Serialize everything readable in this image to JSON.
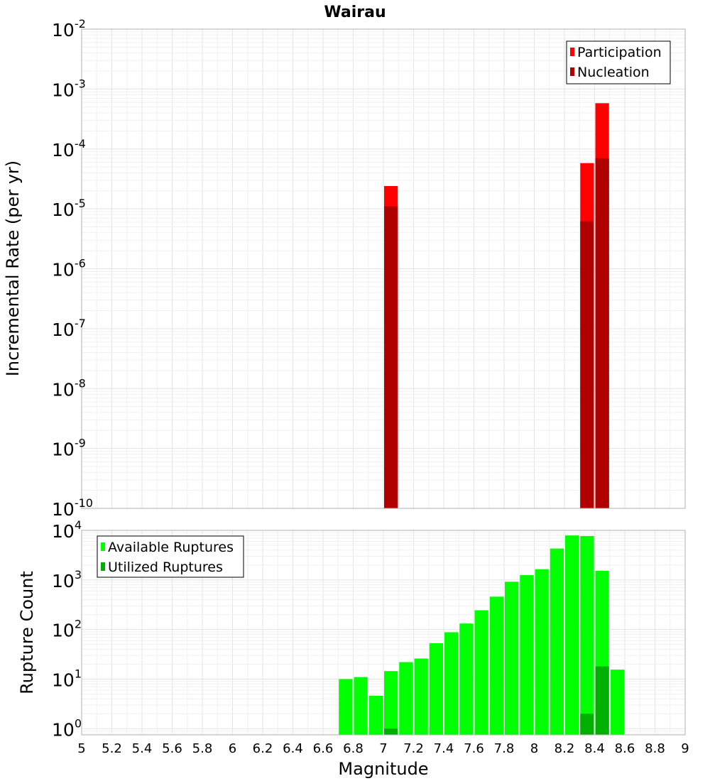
{
  "chart_data": [
    {
      "type": "bar",
      "panel": "top",
      "title": "Wairau",
      "xlabel": "",
      "ylabel": "Incremental Rate (per yr)",
      "yscale": "log",
      "ylim": [
        1e-10,
        0.01
      ],
      "xlim": [
        5,
        9
      ],
      "y_ticks": [
        {
          "base": "10",
          "exp": "-10"
        },
        {
          "base": "10",
          "exp": "-9"
        },
        {
          "base": "10",
          "exp": "-8"
        },
        {
          "base": "10",
          "exp": "-7"
        },
        {
          "base": "10",
          "exp": "-6"
        },
        {
          "base": "10",
          "exp": "-5"
        },
        {
          "base": "10",
          "exp": "-4"
        },
        {
          "base": "10",
          "exp": "-3"
        },
        {
          "base": "10",
          "exp": "-2"
        }
      ],
      "legend_position": "top-right",
      "series": [
        {
          "name": "Participation",
          "color": "#ff0000",
          "points": [
            {
              "x": 7.05,
              "y": 2.4e-05
            },
            {
              "x": 8.35,
              "y": 5.8e-05
            },
            {
              "x": 8.45,
              "y": 0.00058
            }
          ]
        },
        {
          "name": "Nucleation",
          "color": "#b00000",
          "points": [
            {
              "x": 7.05,
              "y": 1.1e-05
            },
            {
              "x": 8.35,
              "y": 6.2e-06
            },
            {
              "x": 8.45,
              "y": 7e-05
            }
          ]
        }
      ]
    },
    {
      "type": "bar",
      "panel": "bottom",
      "title": "",
      "xlabel": "Magnitude",
      "ylabel": "Rupture Count",
      "yscale": "log",
      "ylim": [
        0.75,
        10000
      ],
      "xlim": [
        5,
        9
      ],
      "x_ticks": [
        "5",
        "5.2",
        "5.4",
        "5.6",
        "5.8",
        "6",
        "6.2",
        "6.4",
        "6.6",
        "6.8",
        "7",
        "7.2",
        "7.4",
        "7.6",
        "7.8",
        "8",
        "8.2",
        "8.4",
        "8.6",
        "8.8",
        "9"
      ],
      "y_ticks": [
        {
          "base": "10",
          "exp": "0"
        },
        {
          "base": "10",
          "exp": "1"
        },
        {
          "base": "10",
          "exp": "2"
        },
        {
          "base": "10",
          "exp": "3"
        },
        {
          "base": "10",
          "exp": "4"
        }
      ],
      "legend_position": "top-left",
      "series": [
        {
          "name": "Available Ruptures",
          "color": "#00ff00",
          "points": [
            {
              "x": 6.75,
              "y": 10
            },
            {
              "x": 6.85,
              "y": 11
            },
            {
              "x": 6.95,
              "y": 4.6
            },
            {
              "x": 7.05,
              "y": 14.5
            },
            {
              "x": 7.15,
              "y": 22
            },
            {
              "x": 7.25,
              "y": 26
            },
            {
              "x": 7.35,
              "y": 53
            },
            {
              "x": 7.45,
              "y": 88
            },
            {
              "x": 7.55,
              "y": 132
            },
            {
              "x": 7.65,
              "y": 245
            },
            {
              "x": 7.75,
              "y": 460
            },
            {
              "x": 7.85,
              "y": 920
            },
            {
              "x": 7.95,
              "y": 1250
            },
            {
              "x": 8.05,
              "y": 1650
            },
            {
              "x": 8.15,
              "y": 4300
            },
            {
              "x": 8.25,
              "y": 7900
            },
            {
              "x": 8.35,
              "y": 7700
            },
            {
              "x": 8.45,
              "y": 1530
            },
            {
              "x": 8.55,
              "y": 15.5
            }
          ]
        },
        {
          "name": "Utilized Ruptures",
          "color": "#00b000",
          "points": [
            {
              "x": 7.05,
              "y": 1
            },
            {
              "x": 8.35,
              "y": 2
            },
            {
              "x": 8.45,
              "y": 18
            }
          ]
        }
      ]
    }
  ]
}
